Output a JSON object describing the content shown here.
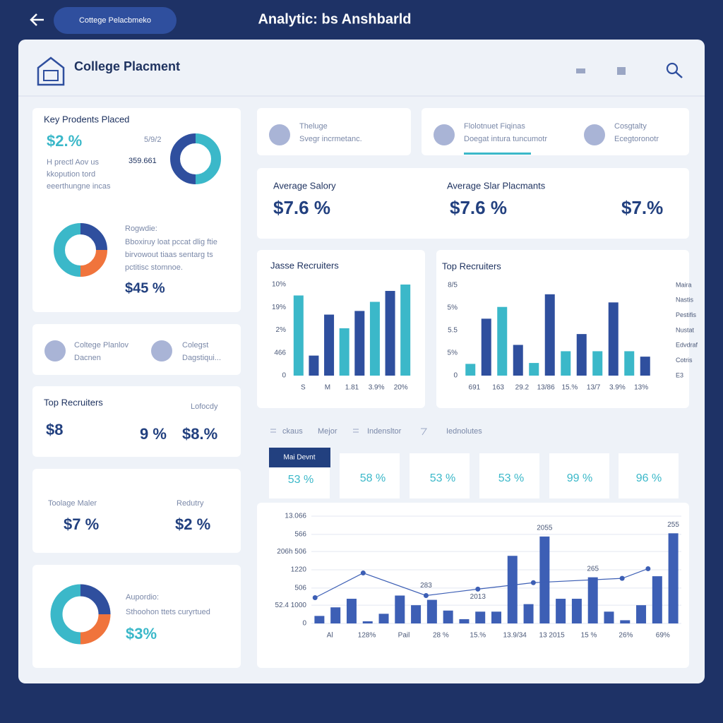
{
  "topbar": {
    "button": "Cottege Pelacbmeko",
    "title": "Analytic: bs Anshbarld"
  },
  "header": {
    "title": "College Placment"
  },
  "placed": {
    "title": "Key Prodents Placed",
    "stat": "$2.%",
    "figure1": "5/9/2",
    "figure2": "359.661",
    "lines": [
      "H prectl Aov us",
      "kkopution tord",
      "eeerthungne incas"
    ],
    "donut": {
      "values": [
        50,
        50
      ],
      "colors": [
        "#3bb8c9",
        "#2f4f9e"
      ]
    }
  },
  "progress": {
    "label": "Rogwdie:",
    "lines": [
      "Bboxiruy loat pccat dlig ftie",
      "birvowout tiaas sentarg ts",
      "pctitisc stomnoe."
    ],
    "stat": "$45 %",
    "donut": {
      "values": [
        25,
        25,
        50
      ],
      "colors": [
        "#2f4f9e",
        "#f0743c",
        "#3bb8c9"
      ]
    }
  },
  "links": [
    {
      "title": "Coltege Planlov",
      "subtitle": "Dacnen"
    },
    {
      "title": "Colegst",
      "subtitle": "Dagstiqui..."
    }
  ],
  "recruiters": {
    "title": "Top Recruiters",
    "note": "Lofocdy",
    "stats": [
      "$8",
      "9 %",
      "$8.%"
    ]
  },
  "majors": [
    {
      "label": "Toolage Maler",
      "stat": "$7 %"
    },
    {
      "label": "Redutry",
      "stat": "$2 %"
    }
  ],
  "support": {
    "label": "Aupordio:",
    "text": "Sthoohon ttets curyrtued",
    "stat": "$3%",
    "donut": {
      "values": [
        25,
        25,
        50
      ],
      "colors": [
        "#2f4f9e",
        "#f0743c",
        "#3bb8c9"
      ]
    }
  },
  "tiles": [
    {
      "title": "Theluge",
      "subtitle": "Svegr incrmetanc."
    },
    {
      "title": "Flolotnuet Fiqinas",
      "subtitle": "Doegat intura tuncumotr"
    },
    {
      "title": "Cosgtalty",
      "subtitle": "Ecegtoronotr"
    }
  ],
  "salary": [
    {
      "label": "Average Salory",
      "stat": "$7.6 %"
    },
    {
      "label": "Average Slar Placmants",
      "stat": "$7.6 %"
    },
    {
      "stat": "$7.%"
    }
  ],
  "filters": [
    "ckaus",
    "Mejor",
    "Indensltor",
    "Iednolutes"
  ],
  "tabs": {
    "active": "Mai Devnt",
    "values": [
      "53 %",
      "58 %",
      "53 %",
      "53 %",
      "99 %",
      "96 %"
    ]
  },
  "chart_data": [
    {
      "type": "bar",
      "title": "Jasse Recruiters",
      "values": [
        88,
        22,
        67,
        52,
        71,
        81,
        93,
        100
      ],
      "colors": [
        "#3bb8c9",
        "#2f4f9e",
        "#2f4f9e",
        "#3bb8c9",
        "#2f4f9e",
        "#3bb8c9",
        "#2f4f9e",
        "#3bb8c9"
      ],
      "ylim": [
        0,
        100
      ],
      "yticks": [
        {
          "value": 100,
          "label": "10%"
        },
        {
          "value": 75,
          "label": "19%"
        },
        {
          "value": 50,
          "label": "2%"
        },
        {
          "value": 25,
          "label": "466"
        },
        0
      ],
      "xlabels": [
        "S",
        "M",
        "1.81",
        "3.9%",
        "20%"
      ]
    },
    {
      "type": "bar",
      "title": "Top Recruiters",
      "values": [
        13,
        63,
        76,
        34,
        14,
        90,
        27,
        46,
        27,
        81,
        27,
        21
      ],
      "colors": [
        "#3bb8c9",
        "#2f4f9e",
        "#3bb8c9",
        "#2f4f9e",
        "#3bb8c9",
        "#2f4f9e",
        "#3bb8c9",
        "#2f4f9e",
        "#3bb8c9",
        "#2f4f9e",
        "#3bb8c9",
        "#2f4f9e"
      ],
      "ylim": [
        0,
        100
      ],
      "yticks": [
        {
          "value": 100,
          "label": "8/5"
        },
        {
          "value": 75,
          "label": "5%"
        },
        {
          "value": 50,
          "label": "5.5"
        },
        {
          "value": 25,
          "label": "5%"
        },
        0
      ],
      "xlabels": [
        "691",
        "163",
        "29.2",
        "13/86",
        "15.%",
        "13/7",
        "3.9%",
        "13%"
      ],
      "side_labels": [
        "Maira",
        "Nastis",
        "Pestifis",
        "Nustat",
        "Edvdraf",
        "Cotris",
        "E3"
      ]
    },
    {
      "type": "bar",
      "color": "#3d5fb5",
      "grid": true,
      "values": [
        7,
        15,
        23,
        2,
        9,
        26,
        17,
        22,
        12,
        4,
        11,
        11,
        63,
        18,
        81,
        23,
        23,
        43,
        11,
        3,
        17,
        44,
        84
      ],
      "value_labels": [
        null,
        null,
        null,
        null,
        null,
        null,
        null,
        null,
        null,
        null,
        null,
        null,
        null,
        null,
        "2055",
        null,
        null,
        "265",
        null,
        null,
        null,
        null,
        "255"
      ],
      "ylim": [
        0,
        100
      ],
      "yticks": [
        {
          "value": 100,
          "label": "13.066"
        },
        {
          "value": 83,
          "label": "566"
        },
        {
          "value": 67,
          "label": "206h 506"
        },
        {
          "value": 50,
          "label": "1220"
        },
        {
          "value": 33,
          "label": "506"
        },
        {
          "value": 17,
          "label": "52.4 1000"
        },
        0
      ],
      "xlabels": [
        "Al",
        "128%",
        "Pail",
        "28 %",
        "15.%",
        "13.9/34",
        "13 2015",
        "15 %",
        "26%",
        "69%"
      ],
      "line": {
        "color": "#3d5fb5",
        "xlim": [
          0,
          100
        ],
        "x": [
          1,
          14,
          31,
          45,
          60,
          84,
          91
        ],
        "values": [
          24,
          47,
          26,
          32,
          38,
          42,
          51
        ],
        "value_labels": [
          null,
          null,
          "283",
          "2013",
          null,
          null,
          null
        ]
      }
    }
  ]
}
